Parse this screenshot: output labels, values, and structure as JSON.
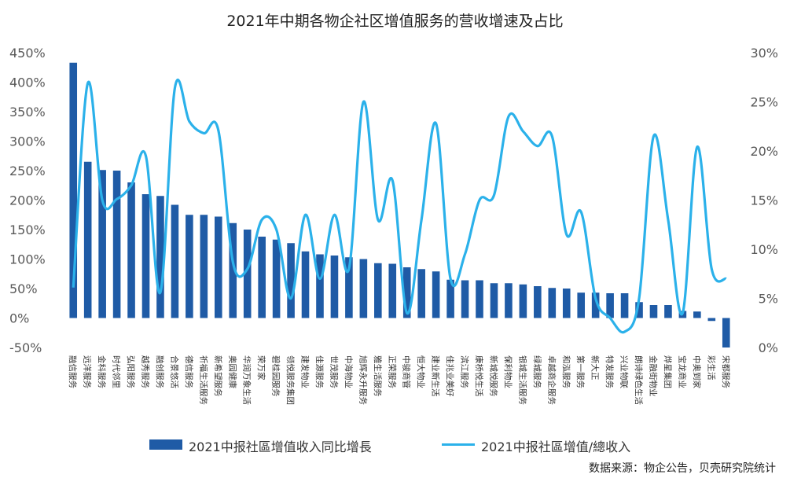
{
  "chart_data": {
    "type": "bar+line",
    "title": "2021年中期各物企社区增值服务的营收增速及占比",
    "categories": [
      "融信服务",
      "远洋服务",
      "金科服务",
      "时代邻里",
      "弘阳服务",
      "越秀服务",
      "融创服务",
      "合景悠活",
      "德信服务",
      "祈福生活服务",
      "新希望服务",
      "奥园健康",
      "华润万象生活",
      "荣万家",
      "碧桂园服务",
      "领悦服务集团",
      "建发物业",
      "佳源服务",
      "世茂服务",
      "中海物业",
      "旭辉永升服务",
      "雅生活服务",
      "正荣服务",
      "中骏商管",
      "恒大物业",
      "建业新生活",
      "佳兆业美好",
      "滨江服务",
      "康桥悦生活",
      "新城悦服务",
      "保利物业",
      "银城生活服务",
      "绿城服务",
      "卓越商企服务",
      "和泓服务",
      "第一服务",
      "新大正",
      "特发服务",
      "兴业物联",
      "朗诗绿色生活",
      "金融街物业",
      "烨星集团",
      "宝龙商业",
      "中奥到家",
      "彩生活",
      "宋都服务"
    ],
    "series": [
      {
        "name": "2021中报社區增值收入同比增長",
        "type": "bar",
        "axis": "left",
        "unit": "%",
        "values": [
          433,
          265,
          251,
          250,
          230,
          210,
          207,
          192,
          175,
          175,
          172,
          161,
          150,
          138,
          133,
          127,
          113,
          108,
          106,
          103,
          100,
          93,
          92,
          86,
          83,
          79,
          65,
          64,
          64,
          59,
          59,
          57,
          54,
          51,
          50,
          43,
          43,
          42,
          42,
          27,
          22,
          22,
          12,
          11,
          -5,
          -50
        ]
      },
      {
        "name": "2021中报社區增值/總收入",
        "type": "line",
        "axis": "right",
        "unit": "%",
        "values": [
          6.1,
          26.9,
          15.0,
          15.1,
          16.5,
          19.5,
          5.6,
          26.4,
          23.0,
          21.8,
          22.1,
          8.7,
          8.0,
          13.0,
          12.0,
          5.0,
          13.5,
          7.0,
          13.5,
          8.0,
          25.0,
          13.0,
          17.0,
          3.5,
          13.0,
          22.8,
          7.0,
          9.5,
          15.0,
          15.5,
          23.5,
          22.0,
          20.5,
          21.5,
          11.5,
          13.8,
          5.0,
          3.0,
          1.6,
          5.0,
          21.5,
          13.0,
          3.5,
          20.4,
          8.0,
          7.0
        ]
      }
    ],
    "y_left": {
      "min": -50,
      "max": 450,
      "step": 50,
      "ticks": [
        "-50%",
        "0%",
        "50%",
        "100%",
        "150%",
        "200%",
        "250%",
        "300%",
        "350%",
        "400%",
        "450%"
      ]
    },
    "y_right": {
      "min": 0,
      "max": 30,
      "step": 5,
      "ticks": [
        "0%",
        "5%",
        "10%",
        "15%",
        "20%",
        "25%",
        "30%"
      ]
    },
    "grid": false,
    "legend_position": "bottom"
  },
  "colors": {
    "bar": "#1f5ba6",
    "line": "#2bb1ea",
    "tick_text": "#595959"
  },
  "source_note": "数据来源：物企公告，贝壳研究院统计"
}
